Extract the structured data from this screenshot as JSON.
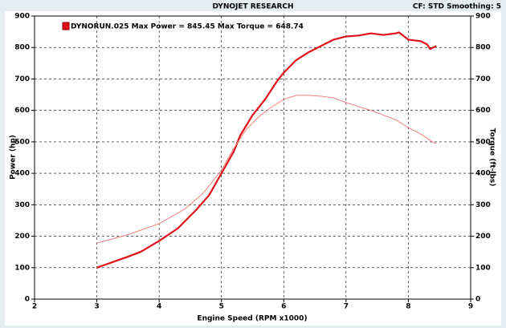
{
  "chart_data": {
    "type": "line",
    "title": "DYNOJET RESEARCH",
    "subtitle": "CF: STD  Smoothing: 5",
    "legend_text": "DYNORUN.025 Max Power = 845.45 Max Torque = 648.74",
    "xlabel": "Engine Speed (RPM x1000)",
    "ylabel": "Power (hp)",
    "y2label": "Torque (ft-lbs)",
    "xlim": [
      2,
      9
    ],
    "xticks": [
      2,
      3,
      4,
      5,
      6,
      7,
      8,
      9
    ],
    "ylim": [
      0,
      900
    ],
    "yticks": [
      0,
      100,
      200,
      300,
      400,
      500,
      600,
      700,
      800,
      900
    ],
    "y2lim": [
      0,
      900
    ],
    "y2ticks": [
      0,
      100,
      200,
      300,
      400,
      500,
      600,
      700,
      800,
      900
    ],
    "grid": true,
    "series": [
      {
        "color": "#e0101a",
        "x": [
          3.0,
          3.5,
          3.7,
          4.0,
          4.3,
          4.6,
          4.8,
          5.0,
          5.2,
          5.3,
          5.5,
          5.7,
          5.9,
          6.0,
          6.2,
          6.4,
          6.6,
          6.8,
          7.0,
          7.2,
          7.4,
          7.6,
          7.8,
          7.85,
          8.0,
          8.2,
          8.3,
          8.35,
          8.45
        ],
        "values": [
          100,
          135,
          150,
          185,
          225,
          285,
          330,
          400,
          470,
          520,
          585,
          635,
          695,
          720,
          760,
          785,
          805,
          825,
          835,
          838,
          845,
          840,
          845,
          848,
          825,
          820,
          810,
          795,
          805
        ]
      },
      {
        "color": "#f08080",
        "axis": "y2",
        "x": [
          3.0,
          3.5,
          4.0,
          4.4,
          4.7,
          5.0,
          5.2,
          5.4,
          5.6,
          5.8,
          6.0,
          6.2,
          6.4,
          6.6,
          6.8,
          7.0,
          7.2,
          7.4,
          7.6,
          7.8,
          8.0,
          8.2,
          8.4,
          8.45
        ],
        "values": [
          178,
          205,
          240,
          285,
          335,
          410,
          480,
          540,
          580,
          610,
          635,
          648,
          648,
          645,
          640,
          625,
          612,
          600,
          585,
          570,
          545,
          525,
          498,
          495
        ]
      }
    ]
  }
}
